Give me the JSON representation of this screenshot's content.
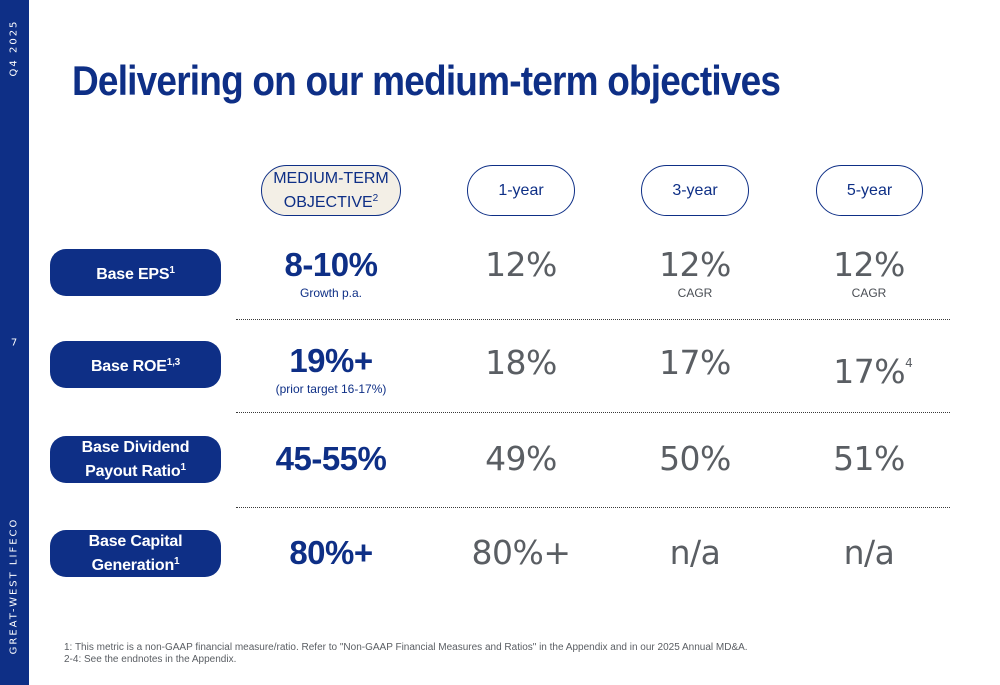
{
  "sidebar": {
    "period": "Q4 2025",
    "page_number": "7",
    "brand": "GREAT-WEST LIFECO"
  },
  "title": "Delivering on our medium-term objectives",
  "columns": {
    "objective_line1": "MEDIUM-TERM",
    "objective_line2": "OBJECTIVE",
    "objective_sup": "2",
    "one_year": "1-year",
    "three_year": "3-year",
    "five_year": "5-year"
  },
  "rows": {
    "eps": {
      "label": "Base EPS",
      "label_sup": "1",
      "objective": "8-10%",
      "objective_sub": "Growth p.a.",
      "one_year": "12%",
      "three_year": "12%",
      "three_year_sub": "CAGR",
      "five_year": "12%",
      "five_year_sub": "CAGR"
    },
    "roe": {
      "label": "Base ROE",
      "label_sup": "1,3",
      "objective": "19%+",
      "objective_sub": "(prior target 16-17%)",
      "one_year": "18%",
      "three_year": "17%",
      "five_year": "17%",
      "five_year_sup": "4"
    },
    "dividend": {
      "label_line1": "Base Dividend",
      "label_line2": "Payout Ratio",
      "label_sup": "1",
      "objective": "45-55%",
      "one_year": "49%",
      "three_year": "50%",
      "five_year": "51%"
    },
    "capital": {
      "label_line1": "Base Capital",
      "label_line2": "Generation",
      "label_sup": "1",
      "objective": "80%+",
      "one_year": "80%+",
      "three_year": "n/a",
      "five_year": "n/a"
    }
  },
  "footnotes": {
    "note1": "1: This metric is a non-GAAP financial measure/ratio. Refer to \"Non-GAAP Financial Measures and Ratios\" in the Appendix and in our 2025 Annual MD&A.",
    "note2": "2-4: See the endnotes in the Appendix."
  },
  "colors": {
    "brand_navy": "#0e2f86",
    "value_grey": "#5a5e63",
    "objective_header_fill": "#f3efe6"
  }
}
